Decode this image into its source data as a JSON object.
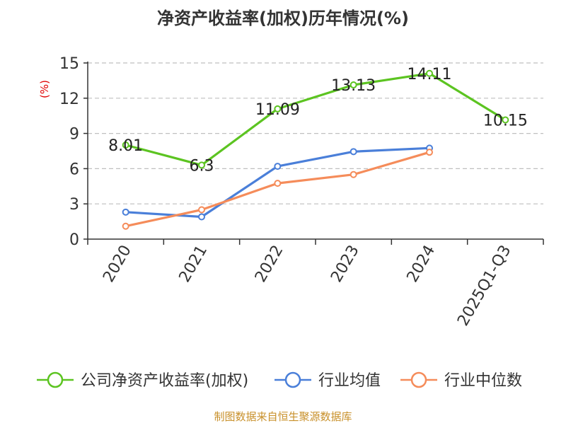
{
  "chart_data": {
    "type": "line",
    "title": "净资产收益率(加权)历年情况(%)",
    "ylabel": "(%)",
    "xlabel": "",
    "ylim": [
      0,
      15
    ],
    "yticks": [
      "0",
      "3",
      "6",
      "9",
      "12",
      "15"
    ],
    "ytick_values": [
      0,
      3,
      6,
      9,
      12,
      15
    ],
    "grid": true,
    "categories": [
      "2020",
      "2021",
      "2022",
      "2023",
      "2024",
      "2025Q1-Q3"
    ],
    "series": [
      {
        "name": "公司净资产收益率(加权)",
        "color": "#5cc421",
        "values": [
          8.01,
          6.3,
          11.09,
          13.13,
          14.11,
          10.15
        ],
        "labels": [
          "8.01",
          "6.3",
          "11.09",
          "13.13",
          "14.11",
          "10.15"
        ]
      },
      {
        "name": "行业均值",
        "color": "#4a7fd9",
        "values": [
          2.3,
          1.9,
          6.2,
          7.45,
          7.75,
          null
        ]
      },
      {
        "name": "行业中位数",
        "color": "#f58c5a",
        "values": [
          1.1,
          2.5,
          4.75,
          5.5,
          7.4,
          null
        ]
      }
    ],
    "legend_position": "bottom"
  },
  "footer": {
    "source": "制图数据来自恒生聚源数据库"
  }
}
